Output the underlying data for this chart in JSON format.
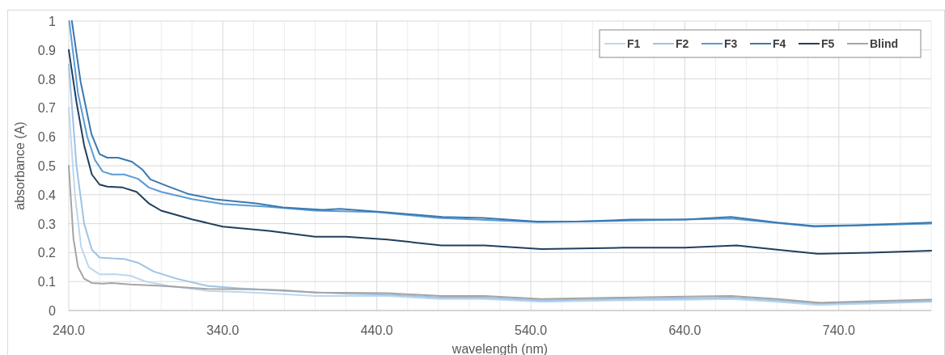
{
  "chart_data": {
    "type": "line",
    "xlabel": "wavelength (nm)",
    "ylabel": "absorbance (A)",
    "xlim": [
      240,
      800
    ],
    "ylim": [
      0,
      1
    ],
    "xticks": [
      {
        "value": 240,
        "label": "240.0"
      },
      {
        "value": 260,
        "label": null
      },
      {
        "value": 280,
        "label": null
      },
      {
        "value": 300,
        "label": null
      },
      {
        "value": 320,
        "label": null
      },
      {
        "value": 340,
        "label": "340.0"
      },
      {
        "value": 360,
        "label": null
      },
      {
        "value": 380,
        "label": null
      },
      {
        "value": 400,
        "label": null
      },
      {
        "value": 420,
        "label": null
      },
      {
        "value": 440,
        "label": "440.0"
      },
      {
        "value": 460,
        "label": null
      },
      {
        "value": 480,
        "label": null
      },
      {
        "value": 500,
        "label": null
      },
      {
        "value": 520,
        "label": null
      },
      {
        "value": 540,
        "label": "540.0"
      },
      {
        "value": 560,
        "label": null
      },
      {
        "value": 580,
        "label": null
      },
      {
        "value": 600,
        "label": null
      },
      {
        "value": 620,
        "label": null
      },
      {
        "value": 640,
        "label": "640.0"
      },
      {
        "value": 660,
        "label": null
      },
      {
        "value": 680,
        "label": null
      },
      {
        "value": 700,
        "label": null
      },
      {
        "value": 720,
        "label": null
      },
      {
        "value": 740,
        "label": "740.0"
      },
      {
        "value": 760,
        "label": null
      },
      {
        "value": 780,
        "label": null
      },
      {
        "value": 800,
        "label": null
      }
    ],
    "yticks": [
      0,
      0.1,
      0.2,
      0.3,
      0.4,
      0.5,
      0.6,
      0.7,
      0.8,
      0.9,
      1
    ],
    "grid": true,
    "legend": "top right",
    "line_style": "solid",
    "marker": "none",
    "series": [
      {
        "name": "F1",
        "color": "#bdd7ee",
        "x": [
          240,
          244,
          248,
          253,
          260,
          270,
          280,
          290,
          305,
          330,
          360,
          400,
          447,
          482,
          510,
          547,
          600,
          640,
          670,
          700,
          727,
          760,
          800
        ],
        "values": [
          0.7,
          0.4,
          0.22,
          0.15,
          0.125,
          0.126,
          0.12,
          0.1,
          0.085,
          0.068,
          0.062,
          0.05,
          0.05,
          0.04,
          0.04,
          0.03,
          0.035,
          0.037,
          0.04,
          0.03,
          0.019,
          0.024,
          0.03
        ]
      },
      {
        "name": "F2",
        "color": "#9dc3e6",
        "x": [
          240,
          245,
          250,
          255,
          260,
          268,
          276,
          285,
          295,
          310,
          330,
          350,
          380,
          420,
          447,
          482,
          510,
          547,
          600,
          640,
          670,
          700,
          727,
          760,
          800
        ],
        "values": [
          0.85,
          0.5,
          0.3,
          0.21,
          0.183,
          0.18,
          0.178,
          0.165,
          0.135,
          0.11,
          0.085,
          0.077,
          0.068,
          0.058,
          0.055,
          0.045,
          0.045,
          0.035,
          0.04,
          0.042,
          0.045,
          0.035,
          0.024,
          0.028,
          0.033
        ]
      },
      {
        "name": "F3",
        "color": "#5b9bd5",
        "x": [
          240.3,
          246,
          252,
          257,
          262,
          268,
          276,
          285,
          292,
          300,
          320,
          340,
          370,
          400,
          440,
          480,
          545,
          600,
          670,
          724,
          800
        ],
        "values": [
          1,
          0.75,
          0.6,
          0.52,
          0.48,
          0.47,
          0.47,
          0.455,
          0.425,
          0.41,
          0.385,
          0.368,
          0.358,
          0.345,
          0.34,
          0.32,
          0.305,
          0.31,
          0.318,
          0.29,
          0.3
        ]
      },
      {
        "name": "F4",
        "color": "#3a78b0",
        "x": [
          242,
          247.7,
          254.7,
          260,
          265,
          272,
          281,
          288,
          293,
          304,
          318,
          335,
          361.6,
          379,
          405,
          416,
          447.5,
          482.5,
          509,
          544,
          570,
          605,
          640,
          670,
          700,
          724,
          752,
          800
        ],
        "values": [
          1,
          0.79,
          0.61,
          0.54,
          0.528,
          0.528,
          0.514,
          0.486,
          0.453,
          0.43,
          0.402,
          0.384,
          0.37,
          0.356,
          0.348,
          0.351,
          0.339,
          0.323,
          0.32,
          0.307,
          0.307,
          0.314,
          0.314,
          0.323,
          0.304,
          0.292,
          0.295,
          0.304
        ]
      },
      {
        "name": "F5",
        "color": "#203f5e",
        "x": [
          240,
          245,
          250,
          255,
          260,
          265,
          275,
          284,
          292,
          300,
          320,
          340,
          370,
          400,
          420,
          447,
          482,
          510,
          547,
          600,
          640,
          673.6,
          700,
          726,
          760,
          800
        ],
        "values": [
          0.9,
          0.72,
          0.57,
          0.47,
          0.435,
          0.428,
          0.425,
          0.41,
          0.37,
          0.345,
          0.315,
          0.29,
          0.275,
          0.255,
          0.255,
          0.245,
          0.225,
          0.225,
          0.212,
          0.217,
          0.217,
          0.225,
          0.21,
          0.196,
          0.2,
          0.207
        ]
      },
      {
        "name": "Blind",
        "color": "#a5a5a5",
        "x": [
          240,
          243,
          246,
          250,
          255,
          262,
          268,
          280,
          300,
          330,
          360,
          380,
          400,
          447,
          482,
          510,
          547,
          600,
          640,
          670,
          700,
          727,
          760,
          800
        ],
        "values": [
          0.5,
          0.25,
          0.15,
          0.11,
          0.095,
          0.093,
          0.095,
          0.09,
          0.085,
          0.075,
          0.073,
          0.07,
          0.062,
          0.06,
          0.05,
          0.05,
          0.04,
          0.045,
          0.048,
          0.05,
          0.04,
          0.027,
          0.032,
          0.038
        ]
      }
    ]
  }
}
